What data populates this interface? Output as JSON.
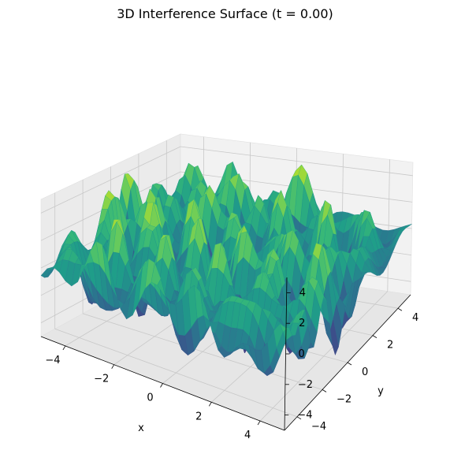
{
  "chart_data": {
    "type": "surface",
    "title": "3D Interference Surface (t = 0.00)",
    "xlabel": "x",
    "ylabel": "y",
    "zlabel": "",
    "xlim": [
      -5,
      5
    ],
    "ylim": [
      -5,
      5
    ],
    "zlim": [
      -5,
      5
    ],
    "x_ticks": [
      -4,
      -2,
      0,
      2,
      4
    ],
    "y_ticks": [
      -4,
      -2,
      0,
      2,
      4
    ],
    "z_ticks": [
      -4,
      -2,
      0,
      2,
      4
    ],
    "x_tick_labels": [
      "−4",
      "−2",
      "0",
      "2",
      "4"
    ],
    "y_tick_labels": [
      "−4",
      "−2",
      "0",
      "2",
      "4"
    ],
    "z_tick_labels": [
      "−4",
      "−2",
      "0",
      "2",
      "4"
    ],
    "t": 0.0,
    "colormap": "viridis",
    "grid": true
  }
}
